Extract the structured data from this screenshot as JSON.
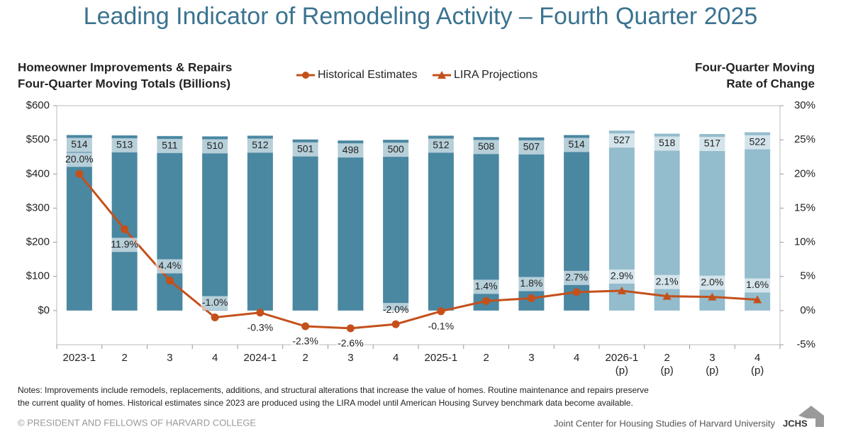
{
  "title": "Leading Indicator of Remodeling Activity – Fourth Quarter 2025",
  "chart_data": {
    "type": "bar_line",
    "y_label": [
      "Homeowner Improvements & Repairs",
      "Four-Quarter Moving Totals (Billions)"
    ],
    "y2_label": [
      "Four-Quarter Moving",
      "Rate of Change"
    ],
    "categories": [
      "2023-1",
      "2",
      "3",
      "4",
      "2024-1",
      "2",
      "3",
      "4",
      "2025-1",
      "2",
      "3",
      "4",
      "2026-1\n(p)",
      "2\n(p)",
      "3\n(p)",
      "4\n(p)"
    ],
    "bar_values": [
      514,
      513,
      511,
      510,
      512,
      501,
      498,
      500,
      512,
      508,
      507,
      514,
      527,
      518,
      517,
      522
    ],
    "bar_colors": [
      "#4a87a1",
      "#4a87a1",
      "#4a87a1",
      "#4a87a1",
      "#4a87a1",
      "#4a87a1",
      "#4a87a1",
      "#4a87a1",
      "#4a87a1",
      "#4a87a1",
      "#4a87a1",
      "#4a87a1",
      "#93bccd",
      "#93bccd",
      "#93bccd",
      "#93bccd"
    ],
    "series": [
      {
        "name": "Historical Estimates",
        "color": "#c4501b",
        "axis": "y2",
        "marker": "circle",
        "values": [
          20.0,
          11.9,
          4.4,
          -1.0,
          -0.3,
          -2.3,
          -2.6,
          -2.0,
          -0.1,
          1.4,
          1.8,
          2.7,
          null,
          null,
          null,
          null
        ],
        "value_labels": [
          "20.0%",
          "11.9%",
          "4.4%",
          "-1.0%",
          "-0.3%",
          "-2.3%",
          "-2.6%",
          "-2.0%",
          "-0.1%",
          "1.4%",
          "1.8%",
          "2.7%",
          null,
          null,
          null,
          null
        ]
      },
      {
        "name": "LIRA Projections",
        "color": "#c4501b",
        "axis": "y2",
        "marker": "triangle",
        "values": [
          null,
          null,
          null,
          null,
          null,
          null,
          null,
          null,
          null,
          null,
          null,
          null,
          2.9,
          2.1,
          2.0,
          1.6
        ],
        "value_labels": [
          null,
          null,
          null,
          null,
          null,
          null,
          null,
          null,
          null,
          null,
          null,
          null,
          "2.9%",
          "2.1%",
          "2.0%",
          "1.6%"
        ]
      }
    ],
    "ylim": [
      -100,
      600
    ],
    "yticks": [
      {
        "value": 0,
        "label": "$0"
      },
      {
        "value": 100,
        "label": "$100"
      },
      {
        "value": 200,
        "label": "$200"
      },
      {
        "value": 300,
        "label": "$300"
      },
      {
        "value": 400,
        "label": "$400"
      },
      {
        "value": 500,
        "label": "$500"
      },
      {
        "value": 600,
        "label": "$600"
      }
    ],
    "y2lim": [
      -5,
      30
    ],
    "y2ticks": [
      {
        "value": -5,
        "label": "-5%"
      },
      {
        "value": 0,
        "label": "0%"
      },
      {
        "value": 5,
        "label": "5%"
      },
      {
        "value": 10,
        "label": "10%"
      },
      {
        "value": 15,
        "label": "15%"
      },
      {
        "value": 20,
        "label": "20%"
      },
      {
        "value": 25,
        "label": "25%"
      },
      {
        "value": 30,
        "label": "30%"
      }
    ],
    "grid": false
  },
  "notes": [
    "Notes: Improvements include remodels, replacements, additions, and structural alterations that increase the value of homes. Routine maintenance and repairs preserve",
    "the current quality of homes. Historical estimates since 2023 are produced using the LIRA model until American Housing Survey benchmark data become available."
  ],
  "copyright": "© PRESIDENT AND FELLOWS OF HARVARD COLLEGE",
  "source": "Joint Center for Housing Studies of Harvard University",
  "logo": "JCHS"
}
